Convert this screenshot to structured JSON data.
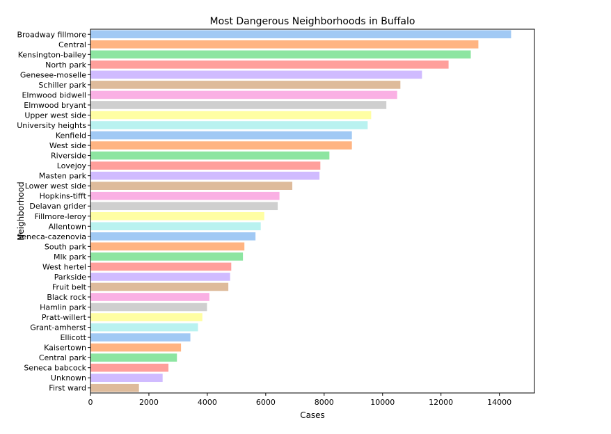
{
  "chart_data": {
    "type": "bar",
    "orientation": "horizontal",
    "title": "Most Dangerous Neighborhoods in Buffalo",
    "xlabel": "Cases",
    "ylabel": "Neighborhood",
    "xlim": [
      0,
      15200
    ],
    "xticks": [
      0,
      2000,
      4000,
      6000,
      8000,
      10000,
      12000,
      14000
    ],
    "grid": false,
    "categories": [
      "Broadway fillmore",
      "Central",
      "Kensington-bailey",
      "North park",
      "Genesee-moselle",
      "Schiller park",
      "Elmwood bidwell",
      "Elmwood bryant",
      "Upper west side",
      "University heights",
      "Kenfield",
      "West side",
      "Riverside",
      "Lovejoy",
      "Masten park",
      "Lower west side",
      "Hopkins-tifft",
      "Delavan grider",
      "Fillmore-leroy",
      "Allentown",
      "Seneca-cazenovia",
      "South park",
      "Mlk park",
      "West hertel",
      "Parkside",
      "Fruit belt",
      "Black rock",
      "Hamlin park",
      "Pratt-willert",
      "Grant-amherst",
      "Ellicott",
      "Kaisertown",
      "Central park",
      "Seneca babcock",
      "Unknown",
      "First ward"
    ],
    "values": [
      14400,
      13280,
      13020,
      12260,
      11350,
      10610,
      10500,
      10130,
      9610,
      9490,
      8950,
      8950,
      8180,
      7870,
      7840,
      6910,
      6470,
      6410,
      5950,
      5830,
      5650,
      5270,
      5220,
      4820,
      4780,
      4720,
      4070,
      3990,
      3830,
      3680,
      3420,
      3100,
      2960,
      2670,
      2470,
      1660
    ],
    "colors": [
      "#a1c9f4",
      "#ffb482",
      "#8de5a1",
      "#ff9f9b",
      "#d0bbff",
      "#debb9b",
      "#fab0e4",
      "#cfcfcf",
      "#fffea3",
      "#b9f2f0"
    ]
  }
}
